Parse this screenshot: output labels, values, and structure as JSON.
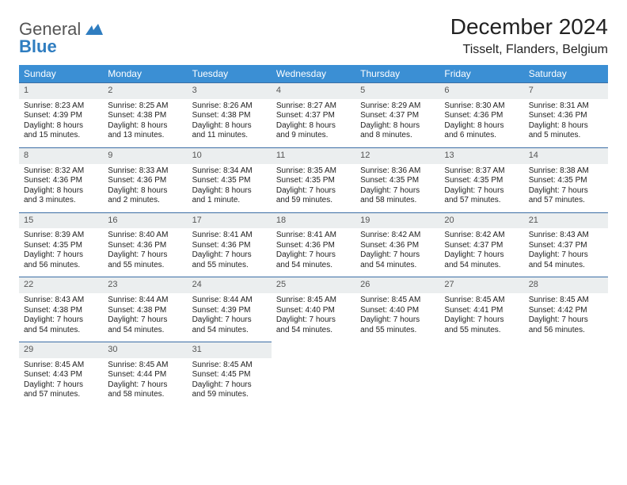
{
  "logo": {
    "general": "General",
    "blue": "Blue"
  },
  "header": {
    "month_title": "December 2024",
    "location": "Tisselt, Flanders, Belgium"
  },
  "colors": {
    "header_bg": "#3b8fd4",
    "daynum_bg": "#ebeeef",
    "row_border": "#3b6ea5",
    "text": "#222222",
    "logo_blue": "#2f7dc0"
  },
  "weekdays": [
    "Sunday",
    "Monday",
    "Tuesday",
    "Wednesday",
    "Thursday",
    "Friday",
    "Saturday"
  ],
  "days": [
    {
      "n": "1",
      "sr": "Sunrise: 8:23 AM",
      "ss": "Sunset: 4:39 PM",
      "dl": "Daylight: 8 hours and 15 minutes."
    },
    {
      "n": "2",
      "sr": "Sunrise: 8:25 AM",
      "ss": "Sunset: 4:38 PM",
      "dl": "Daylight: 8 hours and 13 minutes."
    },
    {
      "n": "3",
      "sr": "Sunrise: 8:26 AM",
      "ss": "Sunset: 4:38 PM",
      "dl": "Daylight: 8 hours and 11 minutes."
    },
    {
      "n": "4",
      "sr": "Sunrise: 8:27 AM",
      "ss": "Sunset: 4:37 PM",
      "dl": "Daylight: 8 hours and 9 minutes."
    },
    {
      "n": "5",
      "sr": "Sunrise: 8:29 AM",
      "ss": "Sunset: 4:37 PM",
      "dl": "Daylight: 8 hours and 8 minutes."
    },
    {
      "n": "6",
      "sr": "Sunrise: 8:30 AM",
      "ss": "Sunset: 4:36 PM",
      "dl": "Daylight: 8 hours and 6 minutes."
    },
    {
      "n": "7",
      "sr": "Sunrise: 8:31 AM",
      "ss": "Sunset: 4:36 PM",
      "dl": "Daylight: 8 hours and 5 minutes."
    },
    {
      "n": "8",
      "sr": "Sunrise: 8:32 AM",
      "ss": "Sunset: 4:36 PM",
      "dl": "Daylight: 8 hours and 3 minutes."
    },
    {
      "n": "9",
      "sr": "Sunrise: 8:33 AM",
      "ss": "Sunset: 4:36 PM",
      "dl": "Daylight: 8 hours and 2 minutes."
    },
    {
      "n": "10",
      "sr": "Sunrise: 8:34 AM",
      "ss": "Sunset: 4:35 PM",
      "dl": "Daylight: 8 hours and 1 minute."
    },
    {
      "n": "11",
      "sr": "Sunrise: 8:35 AM",
      "ss": "Sunset: 4:35 PM",
      "dl": "Daylight: 7 hours and 59 minutes."
    },
    {
      "n": "12",
      "sr": "Sunrise: 8:36 AM",
      "ss": "Sunset: 4:35 PM",
      "dl": "Daylight: 7 hours and 58 minutes."
    },
    {
      "n": "13",
      "sr": "Sunrise: 8:37 AM",
      "ss": "Sunset: 4:35 PM",
      "dl": "Daylight: 7 hours and 57 minutes."
    },
    {
      "n": "14",
      "sr": "Sunrise: 8:38 AM",
      "ss": "Sunset: 4:35 PM",
      "dl": "Daylight: 7 hours and 57 minutes."
    },
    {
      "n": "15",
      "sr": "Sunrise: 8:39 AM",
      "ss": "Sunset: 4:35 PM",
      "dl": "Daylight: 7 hours and 56 minutes."
    },
    {
      "n": "16",
      "sr": "Sunrise: 8:40 AM",
      "ss": "Sunset: 4:36 PM",
      "dl": "Daylight: 7 hours and 55 minutes."
    },
    {
      "n": "17",
      "sr": "Sunrise: 8:41 AM",
      "ss": "Sunset: 4:36 PM",
      "dl": "Daylight: 7 hours and 55 minutes."
    },
    {
      "n": "18",
      "sr": "Sunrise: 8:41 AM",
      "ss": "Sunset: 4:36 PM",
      "dl": "Daylight: 7 hours and 54 minutes."
    },
    {
      "n": "19",
      "sr": "Sunrise: 8:42 AM",
      "ss": "Sunset: 4:36 PM",
      "dl": "Daylight: 7 hours and 54 minutes."
    },
    {
      "n": "20",
      "sr": "Sunrise: 8:42 AM",
      "ss": "Sunset: 4:37 PM",
      "dl": "Daylight: 7 hours and 54 minutes."
    },
    {
      "n": "21",
      "sr": "Sunrise: 8:43 AM",
      "ss": "Sunset: 4:37 PM",
      "dl": "Daylight: 7 hours and 54 minutes."
    },
    {
      "n": "22",
      "sr": "Sunrise: 8:43 AM",
      "ss": "Sunset: 4:38 PM",
      "dl": "Daylight: 7 hours and 54 minutes."
    },
    {
      "n": "23",
      "sr": "Sunrise: 8:44 AM",
      "ss": "Sunset: 4:38 PM",
      "dl": "Daylight: 7 hours and 54 minutes."
    },
    {
      "n": "24",
      "sr": "Sunrise: 8:44 AM",
      "ss": "Sunset: 4:39 PM",
      "dl": "Daylight: 7 hours and 54 minutes."
    },
    {
      "n": "25",
      "sr": "Sunrise: 8:45 AM",
      "ss": "Sunset: 4:40 PM",
      "dl": "Daylight: 7 hours and 54 minutes."
    },
    {
      "n": "26",
      "sr": "Sunrise: 8:45 AM",
      "ss": "Sunset: 4:40 PM",
      "dl": "Daylight: 7 hours and 55 minutes."
    },
    {
      "n": "27",
      "sr": "Sunrise: 8:45 AM",
      "ss": "Sunset: 4:41 PM",
      "dl": "Daylight: 7 hours and 55 minutes."
    },
    {
      "n": "28",
      "sr": "Sunrise: 8:45 AM",
      "ss": "Sunset: 4:42 PM",
      "dl": "Daylight: 7 hours and 56 minutes."
    },
    {
      "n": "29",
      "sr": "Sunrise: 8:45 AM",
      "ss": "Sunset: 4:43 PM",
      "dl": "Daylight: 7 hours and 57 minutes."
    },
    {
      "n": "30",
      "sr": "Sunrise: 8:45 AM",
      "ss": "Sunset: 4:44 PM",
      "dl": "Daylight: 7 hours and 58 minutes."
    },
    {
      "n": "31",
      "sr": "Sunrise: 8:45 AM",
      "ss": "Sunset: 4:45 PM",
      "dl": "Daylight: 7 hours and 59 minutes."
    }
  ]
}
